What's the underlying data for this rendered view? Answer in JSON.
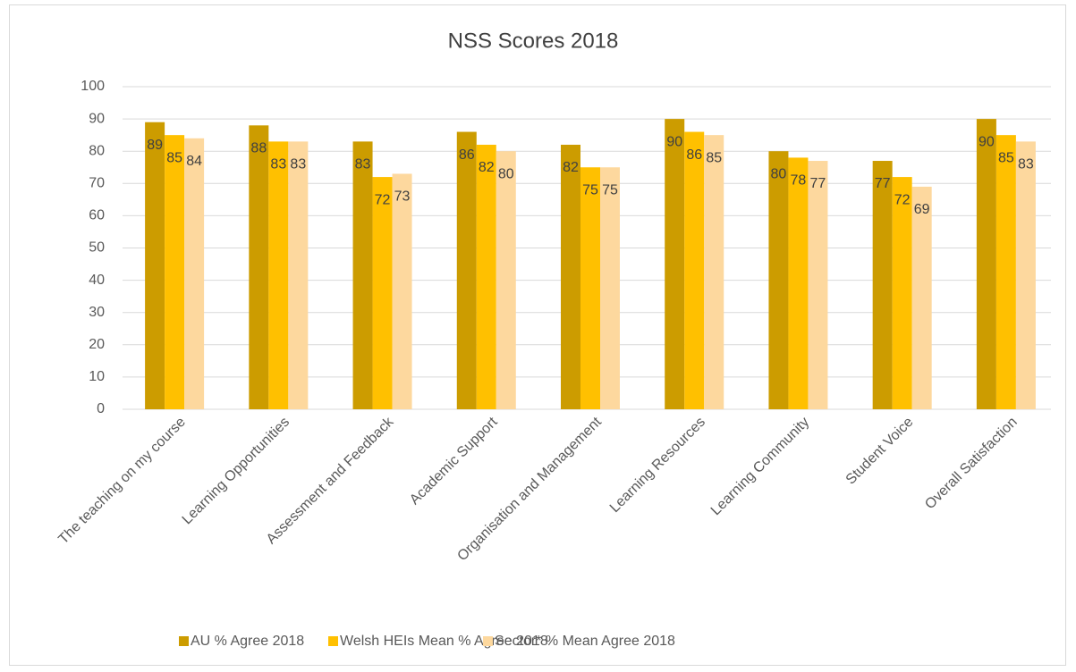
{
  "chart_data": {
    "type": "bar",
    "title": "NSS Scores 2018",
    "categories": [
      "The teaching on my course",
      "Learning Opportunities",
      "Assessment and Feedback",
      "Academic Support",
      "Organisation and Management",
      "Learning Resources",
      "Learning Community",
      "Student Voice",
      "Overall Satisfaction"
    ],
    "series": [
      {
        "name": "AU % Agree 2018",
        "color": "#cc9c00",
        "values": [
          89,
          88,
          83,
          86,
          82,
          90,
          80,
          77,
          90
        ]
      },
      {
        "name": "Welsh HEIs Mean % Agree 2018",
        "color": "#ffc000",
        "values": [
          85,
          83,
          72,
          82,
          75,
          86,
          78,
          72,
          85
        ]
      },
      {
        "name": "Sector* % Mean Agree 2018",
        "color": "#fdd89e",
        "values": [
          84,
          83,
          73,
          80,
          75,
          85,
          77,
          69,
          83
        ]
      }
    ],
    "ylim": [
      0,
      100
    ],
    "yticks": [
      0,
      10,
      20,
      30,
      40,
      50,
      60,
      70,
      80,
      90,
      100
    ],
    "grid": true,
    "legend": "bottom"
  }
}
